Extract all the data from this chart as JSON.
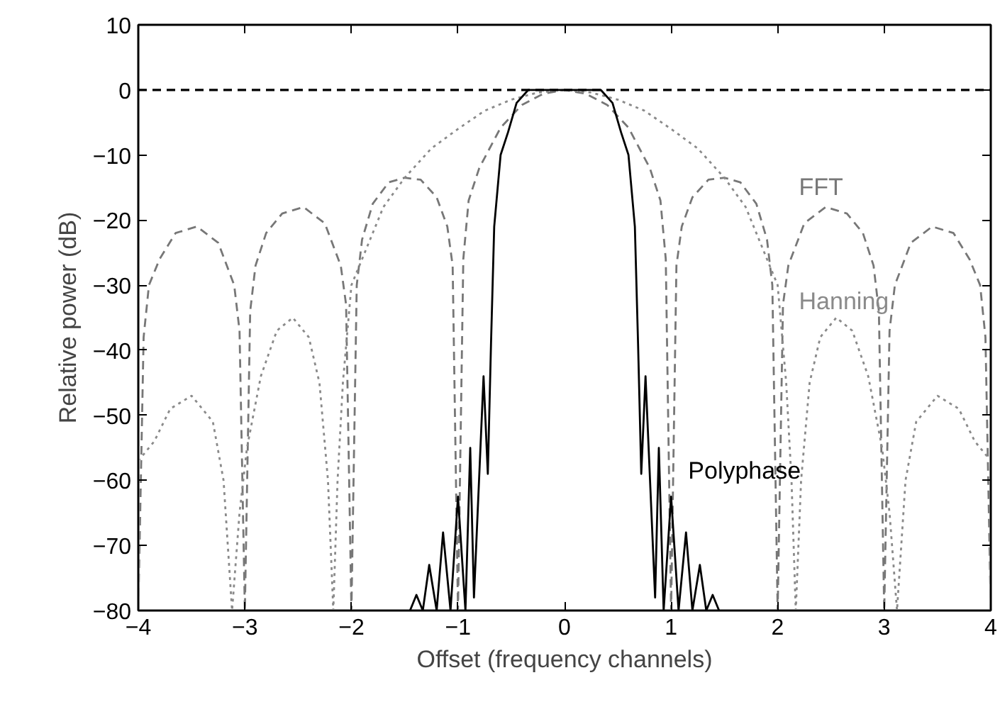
{
  "chart_data": {
    "type": "line",
    "xlabel": "Offset (frequency channels)",
    "ylabel": "Relative power (dB)",
    "xlim": [
      -4,
      4
    ],
    "ylim": [
      -80,
      10
    ],
    "xticks": [
      {
        "value": -4,
        "label": "−4"
      },
      {
        "value": -3,
        "label": "−3"
      },
      {
        "value": -2,
        "label": "−2"
      },
      {
        "value": -1,
        "label": "−1"
      },
      0,
      1,
      2,
      3,
      4
    ],
    "yticks": [
      {
        "value": -80,
        "label": "−80"
      },
      {
        "value": -70,
        "label": "−70"
      },
      {
        "value": -60,
        "label": "−60"
      },
      {
        "value": -50,
        "label": "−50"
      },
      {
        "value": -40,
        "label": "−40"
      },
      {
        "value": -30,
        "label": "−30"
      },
      {
        "value": -20,
        "label": "−20"
      },
      {
        "value": -10,
        "label": "−10"
      },
      0,
      10
    ],
    "grid": false,
    "legend": false,
    "marker": "none",
    "ref_lines": [
      {
        "axis": "y",
        "value": 0,
        "color": "#000000",
        "line_style": "dashed"
      }
    ],
    "series": [
      {
        "name": "FFT",
        "color": "#777777",
        "line_style": "dashed",
        "x": [
          -4,
          -3.95,
          -3.9,
          -3.8,
          -3.65,
          -3.45,
          -3.25,
          -3.1,
          -3.05,
          -3,
          -2.95,
          -2.9,
          -2.8,
          -2.65,
          -2.45,
          -2.25,
          -2.1,
          -2.05,
          -2,
          -1.95,
          -1.9,
          -1.8,
          -1.65,
          -1.5,
          -1.35,
          -1.2,
          -1.1,
          -1.05,
          -1,
          -0.95,
          -0.9,
          -0.8,
          -0.6,
          -0.4,
          -0.2,
          0,
          0.2,
          0.4,
          0.6,
          0.8,
          0.9,
          0.95,
          1,
          1.05,
          1.1,
          1.2,
          1.35,
          1.5,
          1.65,
          1.8,
          1.9,
          1.95,
          2,
          2.05,
          2.1,
          2.25,
          2.45,
          2.65,
          2.8,
          2.9,
          2.95,
          3,
          3.05,
          3.1,
          3.25,
          3.45,
          3.65,
          3.8,
          3.9,
          3.95,
          4
        ],
        "values": [
          -80,
          -38,
          -30,
          -26,
          -22,
          -21,
          -23.5,
          -30,
          -37,
          -80,
          -34,
          -27,
          -22,
          -19,
          -18,
          -20.5,
          -27,
          -33,
          -80,
          -30,
          -23,
          -17.5,
          -14.2,
          -13.5,
          -13.8,
          -16.5,
          -21,
          -27,
          -80,
          -26,
          -17,
          -12,
          -5.8,
          -2.3,
          -0.6,
          0,
          -0.6,
          -2.3,
          -5.8,
          -12,
          -17,
          -26,
          -80,
          -27,
          -21,
          -16.5,
          -13.8,
          -13.5,
          -14.2,
          -17.5,
          -23,
          -30,
          -80,
          -33,
          -27,
          -20.5,
          -18,
          -19,
          -22,
          -27,
          -34,
          -80,
          -37,
          -30,
          -23.5,
          -21,
          -22,
          -26,
          -30,
          -38,
          -80
        ]
      },
      {
        "name": "Hanning",
        "color": "#8a8a8a",
        "line_style": "dotted",
        "x": [
          -4,
          -3.85,
          -3.7,
          -3.5,
          -3.3,
          -3.2,
          -3.12,
          -3.05,
          -2.98,
          -2.85,
          -2.7,
          -2.55,
          -2.4,
          -2.3,
          -2.22,
          -2.17,
          -2.13,
          -2.08,
          -2,
          -1.85,
          -1.7,
          -1.5,
          -1.25,
          -1,
          -0.75,
          -0.5,
          -0.25,
          0,
          0.25,
          0.5,
          0.75,
          1,
          1.25,
          1.5,
          1.7,
          1.85,
          2,
          2.08,
          2.13,
          2.17,
          2.22,
          2.3,
          2.4,
          2.55,
          2.7,
          2.85,
          2.98,
          3.05,
          3.12,
          3.2,
          3.3,
          3.5,
          3.7,
          3.85,
          4
        ],
        "values": [
          -57,
          -54,
          -49,
          -47,
          -51,
          -60,
          -80,
          -65,
          -55,
          -44,
          -37,
          -35,
          -38,
          -45,
          -60,
          -80,
          -60,
          -45,
          -30,
          -24,
          -18,
          -13.5,
          -9,
          -6,
          -3.2,
          -1.5,
          -0.4,
          0,
          -0.4,
          -1.5,
          -3.2,
          -6,
          -9,
          -13.5,
          -18,
          -24,
          -30,
          -45,
          -60,
          -80,
          -60,
          -45,
          -38,
          -35,
          -37,
          -44,
          -55,
          -65,
          -80,
          -60,
          -51,
          -47,
          -49,
          -54,
          -57
        ]
      },
      {
        "name": "Polyphase",
        "color": "#000000",
        "line_style": "solid",
        "x": [
          -1.45,
          -1.39,
          -1.33,
          -1.27,
          -1.2,
          -1.14,
          -1.07,
          -1,
          -0.93,
          -0.885,
          -0.85,
          -0.76,
          -0.72,
          -0.69,
          -0.66,
          -0.6,
          -0.53,
          -0.45,
          -0.34,
          0,
          0.34,
          0.45,
          0.53,
          0.6,
          0.66,
          0.69,
          0.72,
          0.76,
          0.85,
          0.885,
          0.93,
          1,
          1.07,
          1.14,
          1.2,
          1.27,
          1.33,
          1.39,
          1.45
        ],
        "values": [
          -80,
          -77.6,
          -80,
          -73,
          -80,
          -68,
          -80,
          -62.5,
          -80,
          -55,
          -78,
          -44,
          -59,
          -39,
          -21,
          -10,
          -6.5,
          -2,
          0,
          0,
          0,
          -2,
          -6.5,
          -10,
          -21,
          -39,
          -59,
          -44,
          -78,
          -55,
          -80,
          -62.5,
          -80,
          -68,
          -80,
          -73,
          -80,
          -77.6,
          -80
        ]
      }
    ]
  }
}
